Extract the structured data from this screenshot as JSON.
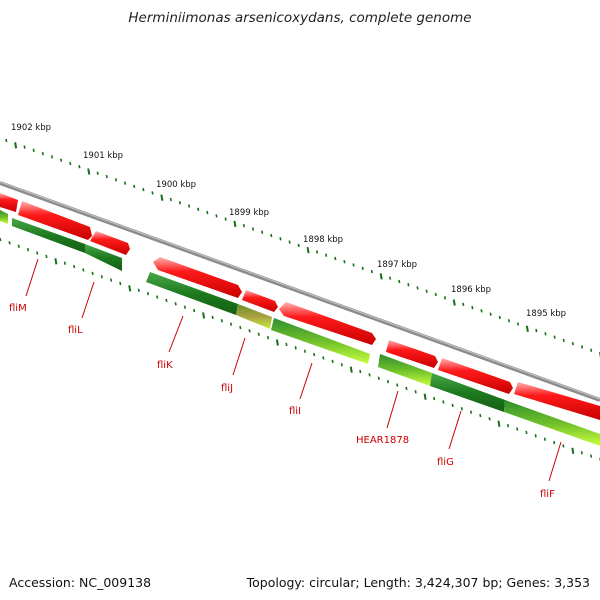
{
  "title": "Herminiimonas arsenicoxydans, complete genome",
  "footer": {
    "accession": "Accession: NC_009138",
    "summary": "Topology: circular; Length: 3,424,307 bp; Genes: 3,353"
  },
  "scale_labels": [
    "1902 kbp",
    "1901 kbp",
    "1900 kbp",
    "1899 kbp",
    "1898 kbp",
    "1897 kbp",
    "1896 kbp",
    "1895 kbp"
  ],
  "gene_labels": [
    "fliM",
    "fliL",
    "fliK",
    "fliJ",
    "fliI",
    "HEAR1878",
    "fliG",
    "fliF"
  ],
  "colors": {
    "backbone": "#8a8a8a",
    "forward_strand": "#ff0000",
    "reverse_strand": "#1f7a1f",
    "reverse_strand_light": "#b8f020",
    "tick": "#1a6e1a",
    "label": "#cc0000"
  }
}
